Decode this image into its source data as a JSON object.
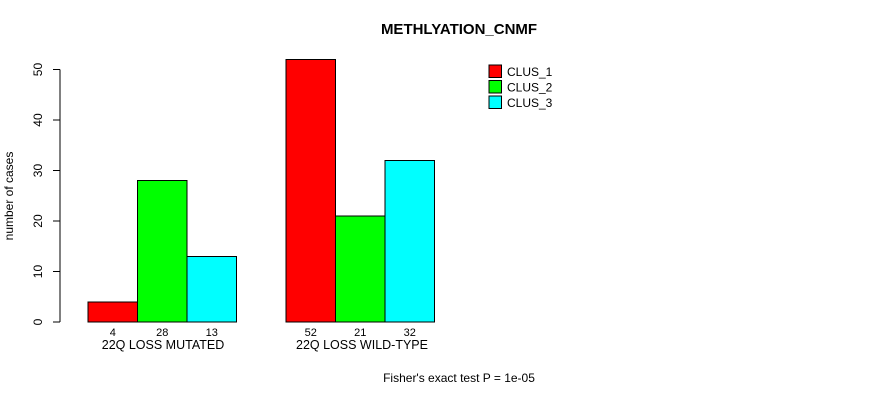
{
  "chart_data": {
    "type": "bar",
    "title": "METHLYATION_CNMF",
    "ylabel": "number of cases",
    "xlabel": "",
    "ylim": [
      0,
      50
    ],
    "yticks": [
      0,
      10,
      20,
      30,
      40,
      50
    ],
    "grid": false,
    "legend_position": "top-right",
    "categories": [
      "22Q LOSS MUTATED",
      "22Q LOSS WILD-TYPE"
    ],
    "series": [
      {
        "name": "CLUS_1",
        "color": "#ff0000",
        "values": [
          4,
          52
        ]
      },
      {
        "name": "CLUS_2",
        "color": "#00ff00",
        "values": [
          28,
          21
        ]
      },
      {
        "name": "CLUS_3",
        "color": "#00ffff",
        "values": [
          13,
          32
        ]
      }
    ],
    "bar_value_labels": [
      [
        4,
        28,
        13
      ],
      [
        52,
        21,
        32
      ]
    ],
    "bar_border_color": "#000000",
    "text_color": "#000000",
    "footnote": "Fisher's exact test P = 1e-05"
  }
}
